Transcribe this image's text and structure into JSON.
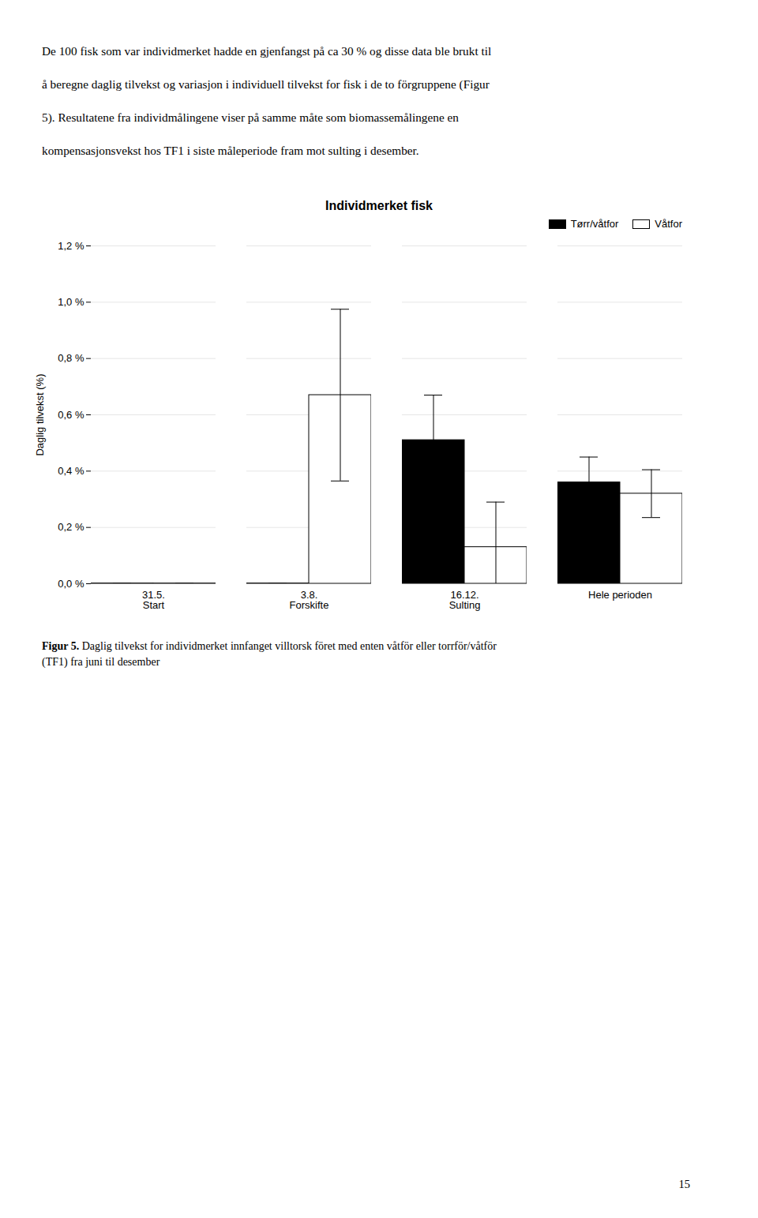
{
  "chart_data": {
    "type": "bar",
    "title": "Individmerket fisk",
    "ylabel": "Daglig tilvekst (%)",
    "categories": [
      "31.5.\nStart",
      "3.8.\nForskifte",
      "16.12.\nSulting",
      "Hele perioden"
    ],
    "series": [
      {
        "name": "Tørr/våtfor",
        "color": "#000000",
        "values": [
          0.001,
          0.001,
          0.51,
          0.36
        ],
        "errors": [
          0.0,
          0.0,
          0.16,
          0.09
        ]
      },
      {
        "name": "Våtfor",
        "color": "#ffffff",
        "values": [
          0.001,
          0.67,
          0.13,
          0.32
        ],
        "errors": [
          0.0,
          0.305,
          0.16,
          0.085
        ]
      }
    ],
    "ylim": [
      0.0,
      1.2
    ],
    "yticks": [
      {
        "value": 0.0,
        "label": "0,0 %"
      },
      {
        "value": 0.2,
        "label": "0,2 %"
      },
      {
        "value": 0.4,
        "label": "0,4 %"
      },
      {
        "value": 0.6,
        "label": "0,6 %"
      },
      {
        "value": 0.8,
        "label": "0,8 %"
      },
      {
        "value": 1.0,
        "label": "1,0 %"
      },
      {
        "value": 1.2,
        "label": "1,2 %"
      }
    ],
    "grid": true,
    "legend": "top-right",
    "intro_lines": [
      "De 100 fisk som var individmerket hadde en gjenfangst på ca 30 % og disse data ble brukt til",
      "å beregne daglig tilvekst og variasjon i individuell tilvekst for fisk i de to förgruppene (Figur",
      "5). Resultatene fra individmålingene viser på samme måte som biomassemålingene en",
      "kompensasjonsvekst hos TF1 i siste måleperiode fram mot sulting i desember."
    ],
    "caption_bold": "Figur 5.",
    "caption": " Daglig tilvekst for individmerket innfanget villtorsk föret med enten våtför eller torrför/våtför\n(TF1) fra juni til desember",
    "page_number": "15"
  }
}
